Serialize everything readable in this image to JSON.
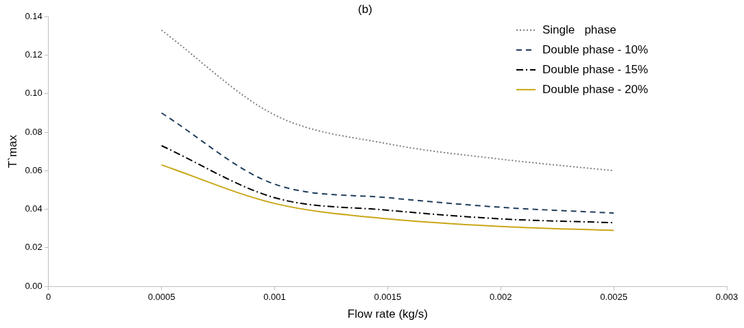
{
  "chart_data": {
    "type": "line",
    "title": "(b)",
    "xlabel": "Flow rate (kg/s)",
    "ylabel": "T`max",
    "x": [
      0.0005,
      0.001,
      0.0015,
      0.002,
      0.0025
    ],
    "series": [
      {
        "name": "Single   phase",
        "color": "#7f7f7f",
        "line_style": "dotted",
        "values": [
          0.133,
          0.089,
          0.074,
          0.066,
          0.06
        ]
      },
      {
        "name": "Double phase - 10%",
        "color": "#1f3d5c",
        "line_style": "dashed",
        "values": [
          0.09,
          0.053,
          0.046,
          0.041,
          0.038
        ]
      },
      {
        "name": "Double phase - 15%",
        "color": "#000000",
        "line_style": "dashdot",
        "values": [
          0.073,
          0.046,
          0.0395,
          0.035,
          0.033
        ]
      },
      {
        "name": "Double phase - 20%",
        "color": "#c9a617",
        "line_style": "solid",
        "values": [
          0.063,
          0.043,
          0.035,
          0.031,
          0.029
        ]
      }
    ],
    "xlim": [
      0,
      0.003
    ],
    "xticks": [
      0,
      0.0005,
      0.001,
      0.0015,
      0.002,
      0.0025,
      0.003
    ],
    "ylim": [
      0,
      0.14
    ],
    "yticks": [
      {
        "value": 0,
        "label": "0.00"
      },
      {
        "value": 0.02,
        "label": "0.02"
      },
      {
        "value": 0.04,
        "label": "0.04"
      },
      {
        "value": 0.06,
        "label": "0.06"
      },
      {
        "value": 0.08,
        "label": "0.08"
      },
      {
        "value": 0.1,
        "label": "0.10"
      },
      {
        "value": 0.12,
        "label": "0.12"
      },
      {
        "value": 0.14,
        "label": "0.14"
      }
    ],
    "grid": false,
    "legend": "top right",
    "marker": "none"
  }
}
